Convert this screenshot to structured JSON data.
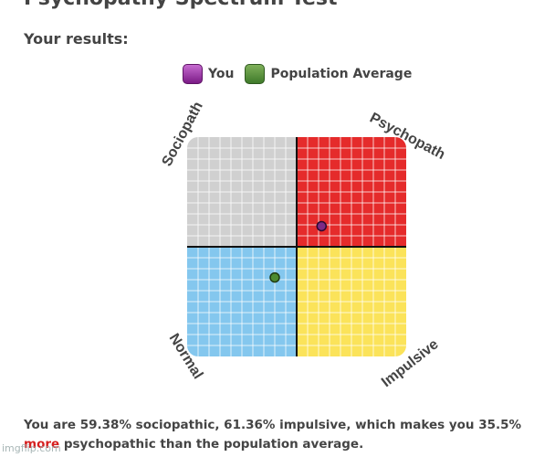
{
  "page": {
    "title": "Psychopathy Spectrum Test",
    "results_heading": "Your results:"
  },
  "legend": {
    "you_label": "You",
    "population_label": "Population Average"
  },
  "chart": {
    "labels": {
      "top_left": "Sociopath",
      "top_right": "Psychopath",
      "bottom_left": "Normal",
      "bottom_right": "Impulsive"
    },
    "quadrant_colors": {
      "top_left": "#d0d0d0",
      "top_right": "#e52b2b",
      "bottom_left": "#84c7ee",
      "bottom_right": "#fbe35a"
    },
    "grid_lines_per_quadrant": 10,
    "you": {
      "sociopathic_pct": 59.38,
      "impulsive_pct": 61.36,
      "color": "#7b2a86"
    },
    "population": {
      "sociopathic_pct": 36.0,
      "impulsive_pct": 40.0,
      "color": "#4d8b31"
    }
  },
  "summary": {
    "part1": "You are 59.38% sociopathic, 61.36% impulsive, which makes you 35.5% ",
    "highlight": "more",
    "part2": " psychopathic than the population average."
  },
  "watermark": "imgflip.com"
}
